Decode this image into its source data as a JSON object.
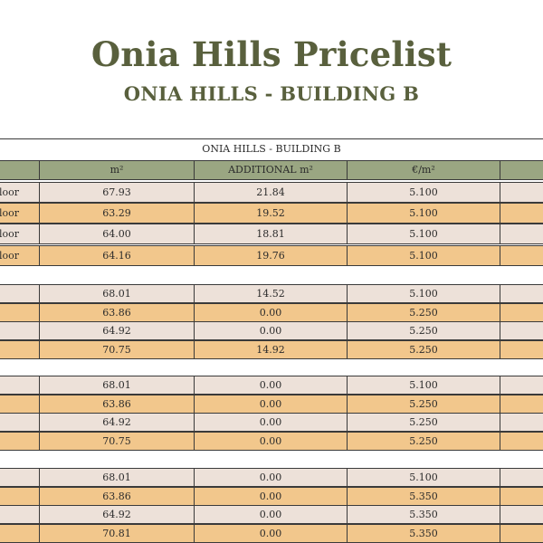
{
  "header": {
    "title": "Onia Hills Pricelist",
    "subtitle": "ONIA HILLS - BUILDING B"
  },
  "table": {
    "caption": "ONIA HILLS - BUILDING B",
    "columns": [
      "",
      "m²",
      "ADDITIONAL m²",
      "€/m²",
      ""
    ],
    "groups": [
      {
        "rows": [
          {
            "label": "loor",
            "area": "67.93",
            "additional": "21.84",
            "price": "5.100"
          },
          {
            "label": "loor",
            "area": "63.29",
            "additional": "19.52",
            "price": "5.100"
          },
          {
            "label": "loor",
            "area": "64.00",
            "additional": "18.81",
            "price": "5.100"
          },
          {
            "label": "loor",
            "area": "64.16",
            "additional": "19.76",
            "price": "5.100"
          }
        ]
      },
      {
        "rows": [
          {
            "label": "",
            "area": "68.01",
            "additional": "14.52",
            "price": "5.100"
          },
          {
            "label": "",
            "area": "63.86",
            "additional": "0.00",
            "price": "5.250"
          },
          {
            "label": "",
            "area": "64.92",
            "additional": "0.00",
            "price": "5.250"
          },
          {
            "label": "",
            "area": "70.75",
            "additional": "14.92",
            "price": "5.250"
          }
        ]
      },
      {
        "rows": [
          {
            "label": "",
            "area": "68.01",
            "additional": "0.00",
            "price": "5.100"
          },
          {
            "label": "",
            "area": "63.86",
            "additional": "0.00",
            "price": "5.250"
          },
          {
            "label": "",
            "area": "64.92",
            "additional": "0.00",
            "price": "5.250"
          },
          {
            "label": "",
            "area": "70.75",
            "additional": "0.00",
            "price": "5.250"
          }
        ]
      },
      {
        "rows": [
          {
            "label": "",
            "area": "68.01",
            "additional": "0.00",
            "price": "5.100"
          },
          {
            "label": "",
            "area": "63.86",
            "additional": "0.00",
            "price": "5.350"
          },
          {
            "label": "",
            "area": "64.92",
            "additional": "0.00",
            "price": "5.350"
          },
          {
            "label": "",
            "area": "70.81",
            "additional": "0.00",
            "price": "5.350"
          }
        ]
      }
    ]
  },
  "colors": {
    "title": "#59603d",
    "header_bg": "#9aa682",
    "row_light": "#ede1d9",
    "row_orange": "#f2c78c"
  }
}
